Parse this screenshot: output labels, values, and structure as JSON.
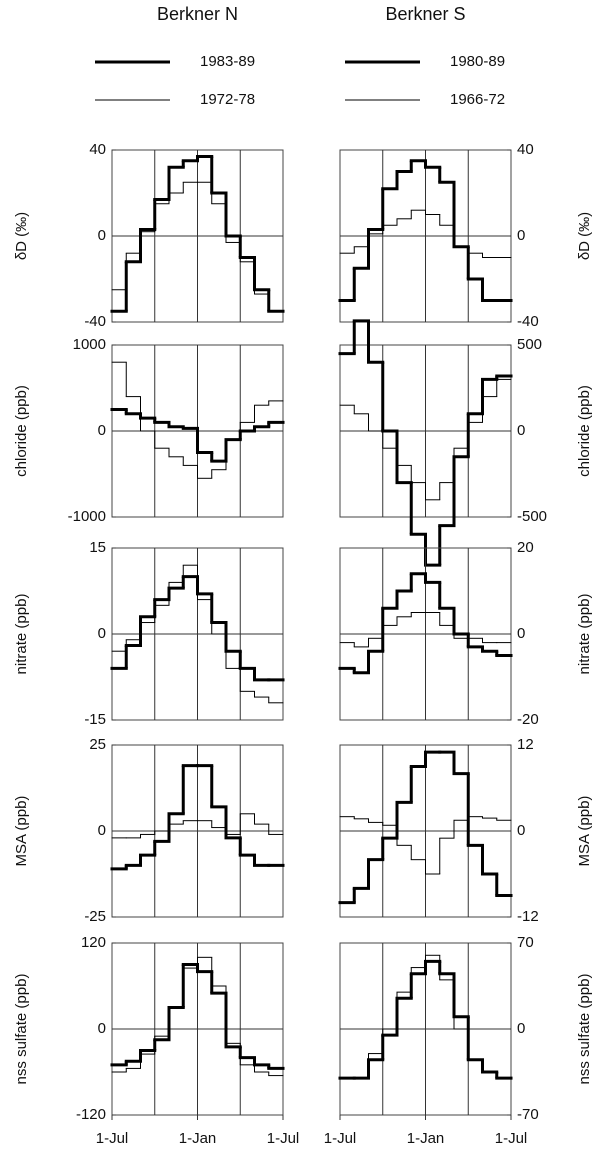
{
  "chart_data": [
    {
      "type": "step",
      "title": "Berkner N",
      "yaxis": "left",
      "ylabel": "δD (‰)",
      "xlim": [
        0,
        12
      ],
      "xgrid": [
        3,
        6,
        9
      ],
      "ylim": [
        -40,
        40
      ],
      "yticks": [
        -40,
        0,
        40
      ],
      "series": [
        {
          "name": "1983-89",
          "color": "#000",
          "width": 3,
          "values": [
            -35,
            -12,
            3,
            17,
            32,
            35,
            37,
            20,
            0,
            -10,
            -25,
            -35
          ]
        },
        {
          "name": "1972-78",
          "color": "#000",
          "width": 1,
          "values": [
            -25,
            -8,
            2,
            15,
            20,
            25,
            25,
            15,
            -3,
            -12,
            -27,
            -35
          ]
        }
      ]
    },
    {
      "type": "step",
      "title": "Berkner S",
      "yaxis": "right",
      "ylabel": "δD (‰)",
      "xlim": [
        0,
        12
      ],
      "xgrid": [
        3,
        6,
        9
      ],
      "ylim": [
        -40,
        40
      ],
      "yticks": [
        -40,
        0,
        40
      ],
      "series": [
        {
          "name": "1980-89",
          "color": "#000",
          "width": 3,
          "values": [
            -30,
            -15,
            3,
            22,
            30,
            35,
            32,
            25,
            -5,
            -20,
            -30,
            -30
          ]
        },
        {
          "name": "1966-72",
          "color": "#000",
          "width": 1,
          "values": [
            -8,
            -5,
            1,
            5,
            8,
            12,
            10,
            5,
            -5,
            -8,
            -10,
            -10
          ]
        }
      ]
    },
    {
      "type": "step",
      "yaxis": "left",
      "ylabel": "chloride (ppb)",
      "xlim": [
        0,
        12
      ],
      "xgrid": [
        3,
        6,
        9
      ],
      "ylim": [
        -1000,
        1000
      ],
      "yticks": [
        -1000,
        0,
        1000
      ],
      "series": [
        {
          "color": "#000",
          "width": 3,
          "values": [
            250,
            200,
            150,
            100,
            50,
            30,
            -250,
            -350,
            -100,
            0,
            50,
            100
          ]
        },
        {
          "color": "#000",
          "width": 1,
          "values": [
            800,
            400,
            0,
            -200,
            -300,
            -400,
            -550,
            -450,
            -100,
            100,
            300,
            350
          ]
        }
      ]
    },
    {
      "type": "step",
      "yaxis": "right",
      "ylabel": "chloride (ppb)",
      "xlim": [
        0,
        12
      ],
      "xgrid": [
        3,
        6,
        9
      ],
      "ylim": [
        -500,
        500
      ],
      "yticks": [
        -500,
        0,
        500
      ],
      "series": [
        {
          "color": "#000",
          "width": 3,
          "values": [
            450,
            640,
            400,
            0,
            -300,
            -600,
            -780,
            -550,
            -150,
            100,
            300,
            320
          ]
        },
        {
          "color": "#000",
          "width": 1,
          "values": [
            150,
            100,
            0,
            -100,
            -200,
            -300,
            -400,
            -300,
            -100,
            50,
            200,
            300
          ]
        }
      ]
    },
    {
      "type": "step",
      "yaxis": "left",
      "ylabel": "nitrate (ppb)",
      "xlim": [
        0,
        12
      ],
      "xgrid": [
        3,
        6,
        9
      ],
      "ylim": [
        -15,
        15
      ],
      "yticks": [
        -15,
        0,
        15
      ],
      "series": [
        {
          "color": "#000",
          "width": 3,
          "values": [
            -6,
            -2,
            3,
            6,
            8,
            10,
            7,
            2,
            -3,
            -6,
            -8,
            -8
          ]
        },
        {
          "color": "#000",
          "width": 1,
          "values": [
            -3,
            -1,
            2,
            5,
            9,
            12,
            6,
            0,
            -6,
            -10,
            -11,
            -12
          ]
        }
      ]
    },
    {
      "type": "step",
      "yaxis": "right",
      "ylabel": "nitrate (ppb)",
      "xlim": [
        0,
        12
      ],
      "xgrid": [
        3,
        6,
        9
      ],
      "ylim": [
        -20,
        20
      ],
      "yticks": [
        -20,
        0,
        20
      ],
      "series": [
        {
          "color": "#000",
          "width": 3,
          "values": [
            -8,
            -9,
            -4,
            6,
            10,
            14,
            12,
            6,
            0,
            -3,
            -4,
            -5
          ]
        },
        {
          "color": "#000",
          "width": 1,
          "values": [
            -2,
            -3,
            -1,
            2,
            4,
            5,
            5,
            2,
            -1,
            -1,
            -2,
            -2
          ]
        }
      ]
    },
    {
      "type": "step",
      "yaxis": "left",
      "ylabel": "MSA (ppb)",
      "xlim": [
        0,
        12
      ],
      "xgrid": [
        3,
        6,
        9
      ],
      "ylim": [
        -25,
        25
      ],
      "yticks": [
        -25,
        0,
        25
      ],
      "series": [
        {
          "color": "#000",
          "width": 3,
          "values": [
            -11,
            -10,
            -7,
            -3,
            5,
            19,
            19,
            7,
            -2,
            -7,
            -10,
            -10
          ]
        },
        {
          "color": "#000",
          "width": 1,
          "values": [
            -2,
            -2,
            -1,
            0,
            2,
            3,
            3,
            1,
            -1,
            5,
            2,
            -1
          ]
        }
      ]
    },
    {
      "type": "step",
      "yaxis": "right",
      "ylabel": "MSA (ppb)",
      "xlim": [
        0,
        12
      ],
      "xgrid": [
        3,
        6,
        9
      ],
      "ylim": [
        -12,
        12
      ],
      "yticks": [
        -12,
        0,
        12
      ],
      "series": [
        {
          "color": "#000",
          "width": 3,
          "values": [
            -10,
            -8,
            -4,
            -1,
            4,
            9,
            11,
            11,
            8,
            -2,
            -6,
            -9
          ]
        },
        {
          "color": "#000",
          "width": 1,
          "values": [
            2,
            1.7,
            1.2,
            0.8,
            -2,
            -4,
            -6,
            -1,
            1.5,
            2,
            1.8,
            1.5
          ]
        }
      ]
    },
    {
      "type": "step",
      "yaxis": "left",
      "ylabel": "nss sulfate (ppb)",
      "xlim": [
        0,
        12
      ],
      "xgrid": [
        3,
        6,
        9
      ],
      "ylim": [
        -120,
        120
      ],
      "yticks": [
        -120,
        0,
        120
      ],
      "xticks": [
        {
          "value": 0,
          "label": "1-Jul"
        },
        {
          "value": 6,
          "label": "1-Jan"
        },
        {
          "value": 12,
          "label": "1-Jul"
        }
      ],
      "series": [
        {
          "color": "#000",
          "width": 3,
          "values": [
            -50,
            -45,
            -30,
            -15,
            30,
            90,
            80,
            50,
            -25,
            -40,
            -50,
            -55
          ]
        },
        {
          "color": "#000",
          "width": 1,
          "values": [
            -60,
            -55,
            -35,
            -10,
            30,
            85,
            100,
            60,
            -20,
            -50,
            -60,
            -65
          ]
        }
      ]
    },
    {
      "type": "step",
      "yaxis": "right",
      "ylabel": "nss sulfate (ppb)",
      "xlim": [
        0,
        12
      ],
      "xgrid": [
        3,
        6,
        9
      ],
      "ylim": [
        -70,
        70
      ],
      "yticks": [
        -70,
        0,
        70
      ],
      "xticks": [
        {
          "value": 0,
          "label": "1-Jul"
        },
        {
          "value": 6,
          "label": "1-Jan"
        },
        {
          "value": 12,
          "label": "1-Jul"
        }
      ],
      "series": [
        {
          "color": "#000",
          "width": 3,
          "values": [
            -40,
            -40,
            -25,
            -5,
            25,
            45,
            55,
            45,
            10,
            -25,
            -35,
            -40
          ]
        },
        {
          "color": "#000",
          "width": 1,
          "values": [
            -40,
            -40,
            -20,
            0,
            30,
            50,
            60,
            40,
            0,
            -25,
            -35,
            -40
          ]
        }
      ]
    }
  ]
}
